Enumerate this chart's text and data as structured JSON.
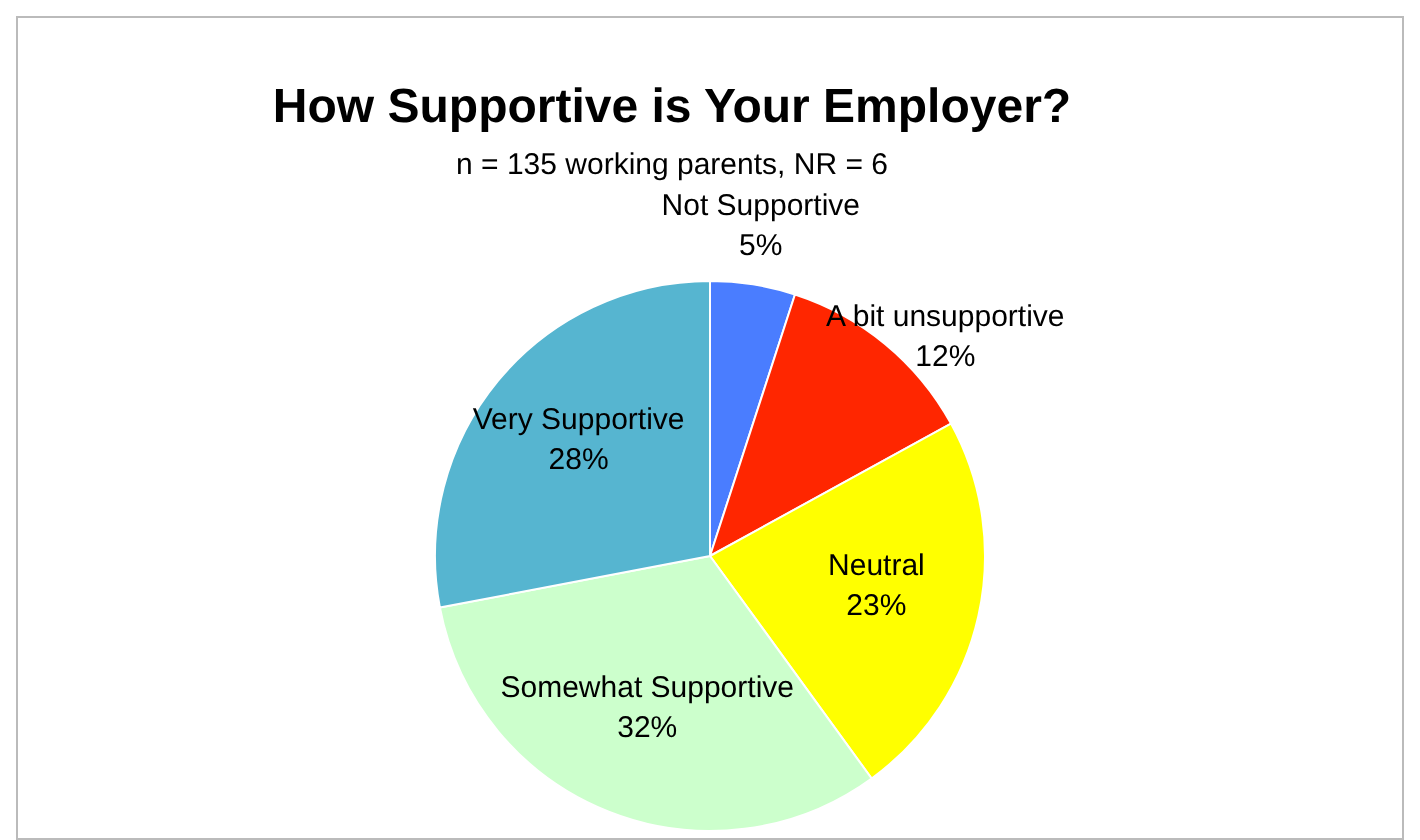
{
  "chart_data": {
    "type": "pie",
    "title": "How Supportive is Your Employer?",
    "subtitle": "n = 135 working parents, NR = 6",
    "categories": [
      "Not Supportive",
      "A bit unsupportive",
      "Neutral",
      "Somewhat Supportive",
      "Very Supportive"
    ],
    "values": [
      5,
      12,
      23,
      32,
      28
    ],
    "colors": [
      "#4a7dff",
      "#ff2600",
      "#ffff00",
      "#ccffcc",
      "#56b5d0"
    ],
    "value_labels": [
      "5%",
      "12%",
      "23%",
      "32%",
      "28%"
    ],
    "legend": false
  }
}
